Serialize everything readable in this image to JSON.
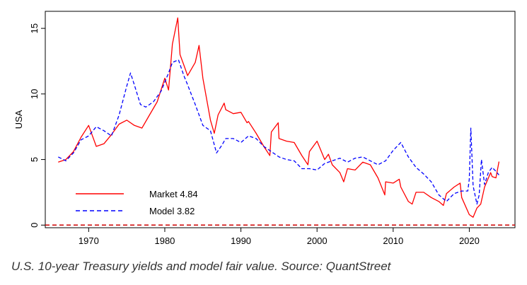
{
  "caption": "U.S. 10-year Treasury yields and model fair value. Source: QuantStreet",
  "chart_data": {
    "type": "line",
    "title": "",
    "xlabel": "",
    "ylabel": "USA",
    "xlim": [
      1964.3,
      2026.0
    ],
    "ylim": [
      -0.2,
      16.3
    ],
    "xticks": [
      1970,
      1980,
      1990,
      2000,
      2010,
      2020
    ],
    "yticks": [
      0,
      5,
      10,
      15
    ],
    "grid": false,
    "legend_position": "bottom-left",
    "reference_line": {
      "y": 0,
      "color": "#cc0000",
      "style": "dashed"
    },
    "series": [
      {
        "name": "Market 4.84",
        "color": "#ff0000",
        "style": "solid",
        "x": [
          1966.0,
          1967.0,
          1968.0,
          1969.0,
          1970.0,
          1970.5,
          1971.0,
          1972.0,
          1973.0,
          1974.0,
          1975.0,
          1976.0,
          1977.0,
          1978.0,
          1979.0,
          1980.0,
          1980.5,
          1981.0,
          1981.7,
          1982.0,
          1982.5,
          1983.0,
          1984.0,
          1984.5,
          1985.0,
          1986.0,
          1986.5,
          1987.0,
          1987.8,
          1988.0,
          1989.0,
          1990.0,
          1990.8,
          1991.0,
          1992.0,
          1993.0,
          1993.8,
          1994.0,
          1994.9,
          1995.0,
          1996.0,
          1997.0,
          1998.0,
          1998.8,
          1999.0,
          2000.0,
          2001.0,
          2001.5,
          2002.0,
          2003.0,
          2003.5,
          2004.0,
          2005.0,
          2006.0,
          2007.0,
          2008.0,
          2008.9,
          2009.0,
          2010.0,
          2010.8,
          2011.0,
          2012.0,
          2012.5,
          2013.0,
          2014.0,
          2015.0,
          2016.0,
          2016.6,
          2017.0,
          2018.0,
          2018.8,
          2019.0,
          2020.0,
          2020.5,
          2021.0,
          2021.5,
          2022.0,
          2022.8,
          2023.0,
          2023.5,
          2023.9
        ],
        "y": [
          4.8,
          5.0,
          5.6,
          6.7,
          7.6,
          6.8,
          6.0,
          6.2,
          6.9,
          7.7,
          8.0,
          7.6,
          7.4,
          8.4,
          9.4,
          11.2,
          10.3,
          13.8,
          15.8,
          13.0,
          12.2,
          11.4,
          12.4,
          13.7,
          11.2,
          8.0,
          7.0,
          8.4,
          9.3,
          8.8,
          8.5,
          8.6,
          7.8,
          7.9,
          7.0,
          6.0,
          5.3,
          7.1,
          7.8,
          6.6,
          6.4,
          6.3,
          5.3,
          4.6,
          5.6,
          6.4,
          5.0,
          5.4,
          4.6,
          4.0,
          3.3,
          4.3,
          4.2,
          4.8,
          4.6,
          3.6,
          2.3,
          3.3,
          3.2,
          3.5,
          2.9,
          1.8,
          1.6,
          2.5,
          2.5,
          2.1,
          1.8,
          1.5,
          2.4,
          2.9,
          3.2,
          2.1,
          0.8,
          0.6,
          1.3,
          1.6,
          2.9,
          4.0,
          3.7,
          3.6,
          4.84
        ]
      },
      {
        "name": "Model 3.82",
        "color": "#0000ff",
        "style": "dashed",
        "x": [
          1966.0,
          1967.0,
          1968.0,
          1969.0,
          1970.0,
          1971.0,
          1972.0,
          1973.0,
          1974.0,
          1975.0,
          1975.5,
          1976.0,
          1976.8,
          1977.5,
          1978.5,
          1979.5,
          1980.5,
          1981.0,
          1981.8,
          1982.5,
          1983.0,
          1984.0,
          1985.0,
          1986.0,
          1986.8,
          1987.5,
          1988.0,
          1989.0,
          1990.0,
          1991.0,
          1992.0,
          1993.0,
          1994.0,
          1995.0,
          1996.0,
          1997.0,
          1998.0,
          1999.0,
          2000.0,
          2001.0,
          2002.0,
          2003.0,
          2004.0,
          2005.0,
          2006.0,
          2007.0,
          2008.0,
          2009.0,
          2010.0,
          2011.0,
          2012.0,
          2013.0,
          2014.0,
          2015.0,
          2016.0,
          2017.0,
          2018.0,
          2019.0,
          2019.8,
          2020.0,
          2020.2,
          2020.5,
          2021.0,
          2021.3,
          2021.6,
          2022.0,
          2022.5,
          2023.0,
          2023.5,
          2023.9
        ],
        "y": [
          5.2,
          4.9,
          5.5,
          6.5,
          6.8,
          7.5,
          7.2,
          6.8,
          8.4,
          10.6,
          11.6,
          10.7,
          9.2,
          9.0,
          9.4,
          10.2,
          11.6,
          12.4,
          12.6,
          11.4,
          10.7,
          9.2,
          7.6,
          7.2,
          5.5,
          6.1,
          6.6,
          6.6,
          6.3,
          6.8,
          6.6,
          6.0,
          5.6,
          5.2,
          5.0,
          4.9,
          4.3,
          4.3,
          4.2,
          4.7,
          4.9,
          5.1,
          4.8,
          5.1,
          5.2,
          4.9,
          4.6,
          4.9,
          5.7,
          6.3,
          5.2,
          4.4,
          3.9,
          3.3,
          2.3,
          1.8,
          2.4,
          2.6,
          2.6,
          3.5,
          7.4,
          3.0,
          1.6,
          2.3,
          5.0,
          3.1,
          4.0,
          4.4,
          4.1,
          3.82
        ]
      }
    ]
  }
}
